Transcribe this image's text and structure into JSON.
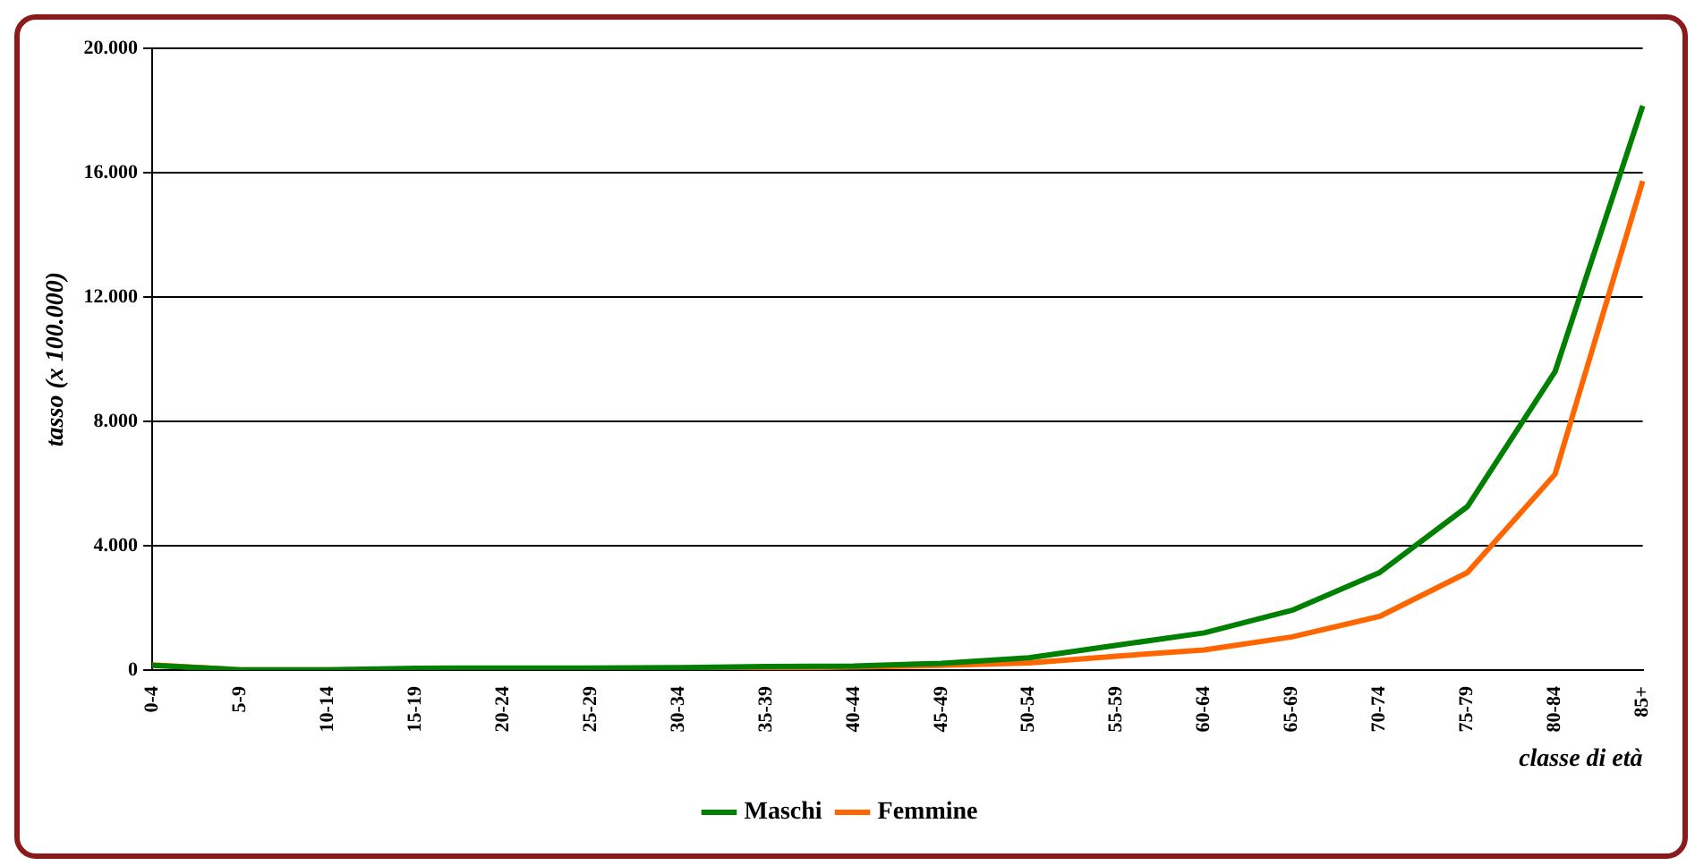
{
  "chart_data": {
    "type": "line",
    "xlabel": "classe di età",
    "ylabel": "tasso (x 100.000)",
    "categories": [
      "0-4",
      "5-9",
      "10-14",
      "15-19",
      "20-24",
      "25-29",
      "30-34",
      "35-39",
      "40-44",
      "45-49",
      "50-54",
      "55-59",
      "60-64",
      "65-69",
      "70-74",
      "75-79",
      "80-84",
      "85+"
    ],
    "series": [
      {
        "name": "Maschi",
        "color": "#008000",
        "values": [
          150,
          10,
          10,
          60,
          70,
          70,
          80,
          120,
          130,
          220,
          400,
          800,
          1200,
          1925,
          3140,
          5260,
          9600,
          18150
        ]
      },
      {
        "name": "Femmine",
        "color": "#ff6600",
        "values": [
          170,
          10,
          10,
          20,
          30,
          40,
          50,
          70,
          100,
          150,
          230,
          450,
          650,
          1070,
          1730,
          3140,
          6300,
          15730
        ]
      }
    ],
    "ylim": [
      0,
      20000
    ],
    "yticks": [
      {
        "value": 0,
        "label": "0"
      },
      {
        "value": 4000,
        "label": "4.000"
      },
      {
        "value": 8000,
        "label": "8.000"
      },
      {
        "value": 12000,
        "label": "12.000"
      },
      {
        "value": 16000,
        "label": "16.000"
      },
      {
        "value": 20000,
        "label": "20.000"
      }
    ],
    "grid": "y",
    "legend": "bottom",
    "marker": "none",
    "line_style": "solid"
  }
}
